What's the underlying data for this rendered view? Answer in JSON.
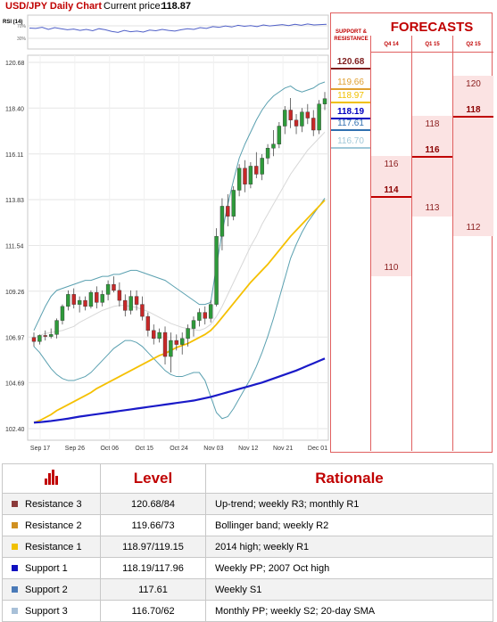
{
  "header": {
    "title": "USD/JPY Daily Chart",
    "price_label": "Current price:",
    "price_value": "118.87"
  },
  "rsi": {
    "label": "RSI (14)",
    "ticks": [
      "70%",
      "30%"
    ],
    "values": [
      62,
      61,
      64,
      58,
      63,
      60,
      57,
      59,
      55,
      58,
      54,
      60,
      57,
      52,
      49,
      55,
      51,
      53,
      50,
      56,
      54,
      58,
      55,
      53,
      57,
      60,
      58,
      63,
      61,
      66,
      64,
      68,
      65,
      70,
      67,
      69,
      66,
      71,
      68,
      70,
      72,
      69,
      73,
      70,
      74,
      71,
      72,
      73
    ]
  },
  "chart_data": {
    "type": "candlestick",
    "title": "USD/JPY Daily Chart",
    "y_ticks": [
      "120.68",
      "118.40",
      "116.11",
      "113.83",
      "111.54",
      "109.26",
      "106.97",
      "104.69",
      "102.40"
    ],
    "ylim": [
      102.4,
      120.68
    ],
    "x_ticks": [
      "Sep 17",
      "Sep 26",
      "Oct 06",
      "Oct 15",
      "Oct 24",
      "Nov 03",
      "Nov 12",
      "Nov 21",
      "Dec 01"
    ],
    "candles": [
      [
        106.95,
        107.2,
        106.5,
        106.75
      ],
      [
        106.75,
        107.1,
        106.6,
        107.05
      ],
      [
        107.05,
        107.3,
        106.8,
        107.0
      ],
      [
        107.0,
        107.4,
        106.9,
        107.1
      ],
      [
        107.1,
        107.9,
        106.9,
        107.8
      ],
      [
        107.8,
        108.6,
        107.6,
        108.5
      ],
      [
        108.5,
        109.3,
        108.3,
        109.1
      ],
      [
        109.1,
        109.4,
        108.4,
        108.6
      ],
      [
        108.6,
        109.0,
        108.2,
        108.8
      ],
      [
        108.8,
        109.0,
        108.3,
        108.5
      ],
      [
        108.5,
        109.3,
        108.4,
        109.2
      ],
      [
        109.2,
        109.5,
        108.4,
        108.7
      ],
      [
        108.7,
        109.3,
        108.5,
        109.1
      ],
      [
        109.1,
        109.8,
        108.8,
        109.6
      ],
      [
        109.6,
        110.0,
        109.2,
        109.3
      ],
      [
        109.3,
        109.7,
        108.5,
        108.8
      ],
      [
        108.8,
        109.1,
        108.0,
        108.3
      ],
      [
        108.3,
        109.3,
        108.1,
        109.0
      ],
      [
        109.0,
        109.3,
        108.3,
        108.6
      ],
      [
        108.6,
        109.0,
        107.8,
        108.0
      ],
      [
        108.0,
        108.2,
        107.0,
        107.3
      ],
      [
        107.3,
        107.6,
        106.6,
        106.9
      ],
      [
        106.9,
        107.4,
        106.7,
        107.2
      ],
      [
        107.2,
        107.5,
        105.6,
        106.0
      ],
      [
        106.0,
        107.2,
        105.2,
        106.8
      ],
      [
        106.8,
        107.1,
        106.3,
        106.6
      ],
      [
        106.6,
        107.2,
        106.1,
        106.9
      ],
      [
        106.9,
        107.6,
        106.5,
        107.4
      ],
      [
        107.4,
        108.0,
        107.0,
        107.8
      ],
      [
        107.8,
        108.4,
        107.5,
        108.2
      ],
      [
        108.2,
        108.5,
        107.6,
        107.9
      ],
      [
        107.9,
        108.8,
        107.7,
        108.6
      ],
      [
        108.6,
        112.4,
        108.5,
        112.0
      ],
      [
        112.0,
        113.9,
        111.3,
        113.5
      ],
      [
        113.5,
        114.1,
        112.5,
        113.0
      ],
      [
        113.0,
        114.5,
        112.8,
        114.3
      ],
      [
        114.3,
        115.6,
        114.0,
        115.4
      ],
      [
        115.4,
        115.8,
        114.2,
        114.6
      ],
      [
        114.6,
        115.7,
        114.4,
        115.5
      ],
      [
        115.5,
        116.2,
        114.9,
        115.1
      ],
      [
        115.1,
        116.1,
        114.8,
        115.9
      ],
      [
        115.9,
        116.6,
        115.6,
        116.4
      ],
      [
        116.4,
        117.3,
        116.0,
        116.6
      ],
      [
        116.6,
        117.7,
        116.4,
        117.5
      ],
      [
        117.5,
        118.5,
        117.1,
        118.3
      ],
      [
        118.3,
        118.9,
        117.4,
        117.8
      ],
      [
        117.8,
        118.1,
        117.1,
        117.5
      ],
      [
        117.5,
        118.4,
        117.2,
        118.2
      ],
      [
        118.2,
        118.6,
        117.6,
        117.9
      ],
      [
        117.9,
        118.3,
        117.0,
        117.3
      ],
      [
        117.3,
        118.8,
        117.1,
        118.6
      ],
      [
        118.6,
        119.2,
        118.3,
        118.87
      ]
    ],
    "series": [
      {
        "values": [
          102.7,
          102.8,
          102.95,
          103.1,
          103.3,
          103.45,
          103.6,
          103.75,
          103.9,
          104.05,
          104.2,
          104.4,
          104.55,
          104.7,
          104.85,
          105.0,
          105.15,
          105.3,
          105.45,
          105.6,
          105.75,
          105.9,
          106.05,
          106.15,
          106.3,
          106.45,
          106.55,
          106.65,
          106.8,
          106.95,
          107.1,
          107.3,
          107.6,
          107.95,
          108.3,
          108.65,
          109.0,
          109.35,
          109.7,
          110.0,
          110.3,
          110.6,
          110.95,
          111.3,
          111.65,
          112.0,
          112.3,
          112.6,
          112.9,
          113.2,
          113.5,
          113.8
        ]
      },
      {
        "values": [
          102.7,
          102.72,
          102.75,
          102.78,
          102.82,
          102.86,
          102.9,
          102.95,
          103.0,
          103.04,
          103.08,
          103.12,
          103.16,
          103.2,
          103.24,
          103.28,
          103.32,
          103.36,
          103.4,
          103.44,
          103.48,
          103.52,
          103.56,
          103.6,
          103.64,
          103.68,
          103.72,
          103.76,
          103.8,
          103.86,
          103.92,
          103.98,
          104.06,
          104.14,
          104.22,
          104.3,
          104.38,
          104.46,
          104.54,
          104.62,
          104.7,
          104.8,
          104.9,
          105.0,
          105.1,
          105.2,
          105.3,
          105.42,
          105.54,
          105.66,
          105.78,
          105.9
        ]
      }
    ],
    "bollinger": {
      "upper": [
        107.3,
        107.9,
        108.5,
        109.0,
        109.3,
        109.4,
        109.5,
        109.6,
        109.7,
        109.8,
        109.8,
        109.9,
        110.0,
        110.0,
        110.1,
        110.1,
        110.2,
        110.3,
        110.3,
        110.2,
        110.1,
        110.0,
        109.9,
        109.8,
        109.6,
        109.4,
        109.2,
        109.0,
        108.8,
        108.6,
        108.6,
        108.7,
        110.5,
        112.2,
        113.6,
        114.8,
        115.9,
        116.6,
        117.2,
        117.8,
        118.3,
        118.7,
        119.0,
        119.2,
        119.4,
        119.5,
        119.3,
        119.2,
        119.3,
        119.4,
        119.6,
        119.7
      ],
      "lower": [
        106.5,
        106.2,
        105.8,
        105.4,
        105.1,
        104.9,
        104.8,
        104.8,
        104.9,
        105.0,
        105.2,
        105.5,
        105.8,
        106.1,
        106.4,
        106.6,
        106.8,
        106.8,
        106.7,
        106.5,
        106.2,
        105.9,
        105.6,
        105.3,
        105.1,
        105.0,
        105.0,
        105.1,
        105.2,
        105.2,
        104.8,
        104.0,
        103.2,
        102.9,
        103.0,
        103.4,
        103.9,
        104.4,
        104.9,
        105.5,
        106.2,
        107.0,
        107.9,
        108.9,
        109.9,
        110.9,
        111.6,
        112.2,
        112.7,
        113.1,
        113.5,
        113.9
      ],
      "middle": [
        106.9,
        107.05,
        107.15,
        107.2,
        107.25,
        107.3,
        107.4,
        107.5,
        107.7,
        107.85,
        108.0,
        108.15,
        108.3,
        108.4,
        108.5,
        108.55,
        108.55,
        108.5,
        108.45,
        108.35,
        108.25,
        108.1,
        107.95,
        107.8,
        107.65,
        107.55,
        107.45,
        107.4,
        107.35,
        107.3,
        107.4,
        107.6,
        108.0,
        108.5,
        109.1,
        109.7,
        110.3,
        110.9,
        111.5,
        112.0,
        112.6,
        113.1,
        113.6,
        114.1,
        114.6,
        115.1,
        115.5,
        115.9,
        116.3,
        116.6,
        116.9,
        117.2
      ]
    }
  },
  "levels_panel": {
    "header": "SUPPORT & RESISTANCE",
    "levels": [
      {
        "value": "120.68",
        "color": "#7f1d1d"
      },
      {
        "value": "119.66",
        "color": "#e0a030"
      },
      {
        "value": "118.97",
        "color": "#f0c000"
      },
      {
        "value": "118.19",
        "color": "#0000c0"
      },
      {
        "value": "117.61",
        "color": "#3070b0"
      },
      {
        "value": "116.70",
        "color": "#a0c8d8"
      }
    ]
  },
  "forecasts": {
    "title": "FORECASTS",
    "columns": [
      {
        "label": "Q4 14",
        "high": "116",
        "mid": "114",
        "low": "110"
      },
      {
        "label": "Q1 15",
        "high": "118",
        "mid": "116",
        "low": "113"
      },
      {
        "label": "Q2 15",
        "high": "120",
        "mid": "118",
        "low": "112"
      }
    ]
  },
  "table": {
    "headers": {
      "level": "Level",
      "rationale": "Rationale"
    },
    "rows": [
      {
        "name": "Resistance 3",
        "color": "#8b3a3a",
        "level": "120.68/84",
        "rationale": "Up-trend; weekly R3; monthly R1"
      },
      {
        "name": "Resistance 2",
        "color": "#d09020",
        "level": "119.66/73",
        "rationale": "Bollinger band; weekly R2"
      },
      {
        "name": "Resistance 1",
        "color": "#f0c000",
        "level": "118.97/119.15",
        "rationale": "2014 high; weekly R1"
      },
      {
        "name": "Support 1",
        "color": "#1010c0",
        "level": "118.19/117.96",
        "rationale": "Weekly PP; 2007 Oct high"
      },
      {
        "name": "Support 2",
        "color": "#4a7ab8",
        "level": "117.61",
        "rationale": "Weekly S1"
      },
      {
        "name": "Support 3",
        "color": "#a8c0d8",
        "level": "116.70/62",
        "rationale": "Monthly PP; weekly S2; 20-day SMA"
      }
    ]
  }
}
